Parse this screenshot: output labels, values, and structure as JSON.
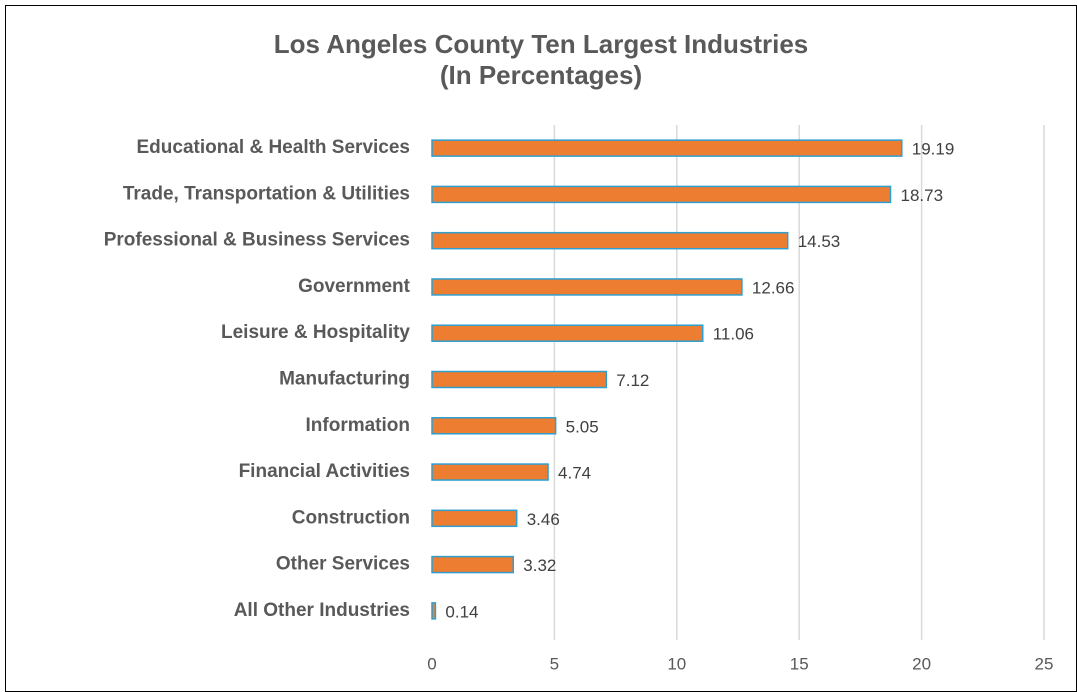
{
  "chart_data": {
    "type": "bar",
    "orientation": "horizontal",
    "title": "Los Angeles County Ten Largest Industries",
    "subtitle": "(In Percentages)",
    "categories": [
      "Educational & Health Services",
      "Trade, Transportation & Utilities",
      "Professional & Business Services",
      "Government",
      "Leisure & Hospitality",
      "Manufacturing",
      "Information",
      "Financial Activities",
      "Construction",
      "Other Services",
      "All Other Industries"
    ],
    "values": [
      19.19,
      18.73,
      14.53,
      12.66,
      11.06,
      7.12,
      5.05,
      4.74,
      3.46,
      3.32,
      0.14
    ],
    "color": "#ed7d31",
    "edge_color": "#2e9fd0",
    "xlim": [
      0,
      25
    ],
    "xticks": [
      0,
      5,
      10,
      15,
      20,
      25
    ],
    "grid": true
  }
}
